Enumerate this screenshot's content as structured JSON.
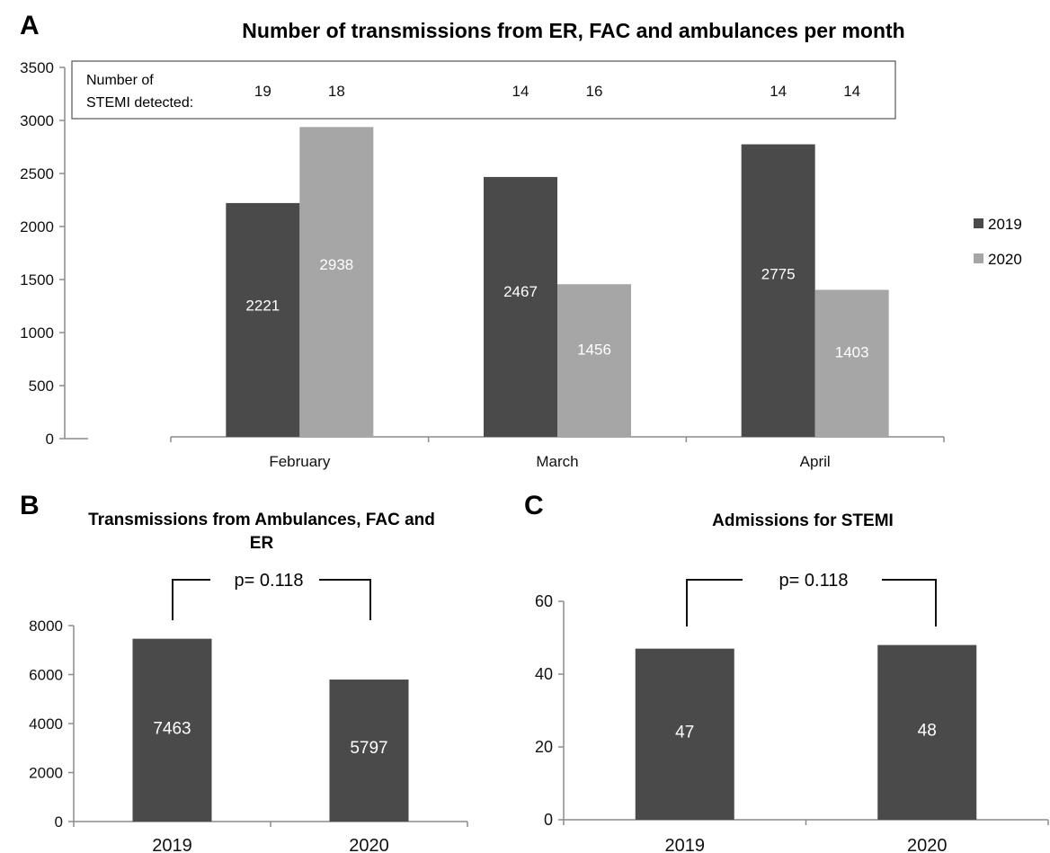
{
  "colors": {
    "series_2019": "#4a4a4a",
    "series_2020": "#a6a6a6",
    "axis": "#8c8c8c",
    "text": "#111111",
    "bar_label": "#ffffff"
  },
  "chart_data": [
    {
      "panel_letter": "A",
      "type": "bar",
      "title": "Number of transmissions from ER, FAC and ambulances per month",
      "categories": [
        "February",
        "March",
        "April"
      ],
      "series": [
        {
          "name": "2019",
          "values": [
            2221,
            2467,
            2775
          ]
        },
        {
          "name": "2020",
          "values": [
            2938,
            1456,
            1403
          ]
        }
      ],
      "ylim": [
        0,
        3500
      ],
      "yticks": [
        "0",
        "500",
        "1000",
        "1500",
        "2000",
        "2500",
        "3000",
        "3500"
      ],
      "legend_position": "right",
      "grid": false,
      "annotation_box": {
        "label_line1": "Number of",
        "label_line2": "STEMI detected:",
        "values": [
          "19",
          "18",
          "14",
          "16",
          "14",
          "14"
        ]
      }
    },
    {
      "panel_letter": "B",
      "type": "bar",
      "title_line1": "Transmissions from Ambulances, FAC and",
      "title_line2": "ER",
      "categories": [
        "2019",
        "2020"
      ],
      "values": [
        7463,
        5797
      ],
      "ylim": [
        0,
        8000
      ],
      "yticks": [
        "0",
        "2000",
        "4000",
        "6000",
        "8000"
      ],
      "grid": false,
      "p_value_label": "p= 0.118"
    },
    {
      "panel_letter": "C",
      "type": "bar",
      "title": "Admissions for STEMI",
      "categories": [
        "2019",
        "2020"
      ],
      "values": [
        47,
        48
      ],
      "ylim": [
        0,
        60
      ],
      "yticks": [
        "0",
        "20",
        "40",
        "60"
      ],
      "grid": false,
      "p_value_label": "p= 0.118"
    }
  ]
}
